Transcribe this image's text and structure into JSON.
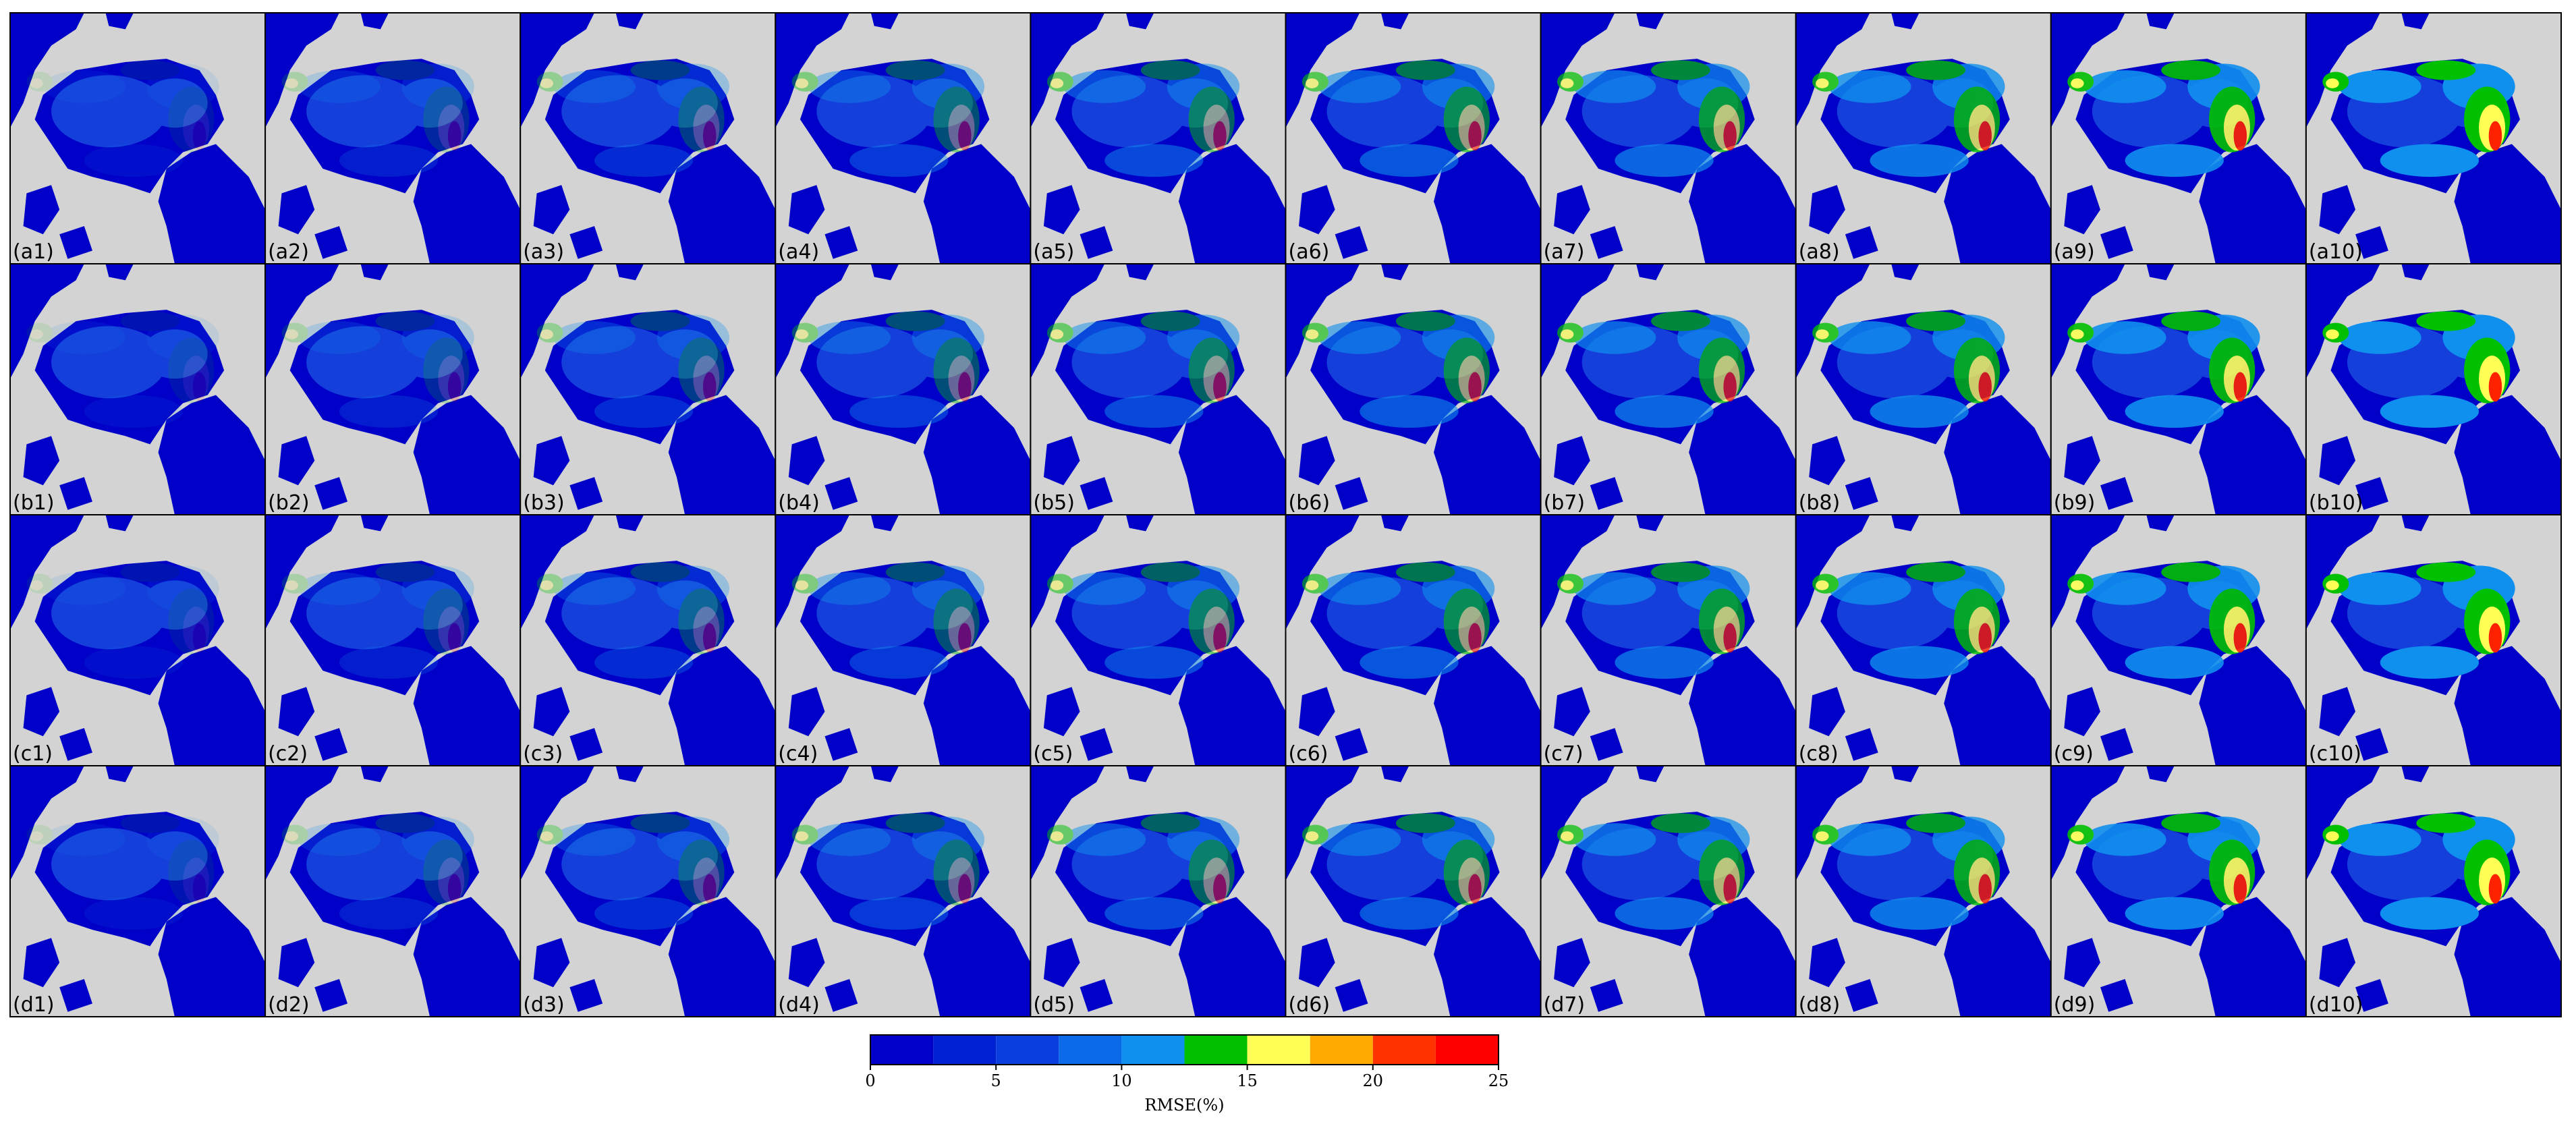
{
  "panels": [
    [
      "(a1)",
      "(a2)",
      "(a3)",
      "(a4)",
      "(a5)",
      "(a6)",
      "(a7)",
      "(a8)",
      "(a9)",
      "(a10)"
    ],
    [
      "(b1)",
      "(b2)",
      "(b3)",
      "(b4)",
      "(b5)",
      "(b6)",
      "(b7)",
      "(b8)",
      "(b9)",
      "(b10)"
    ],
    [
      "(c1)",
      "(c2)",
      "(c3)",
      "(c4)",
      "(c5)",
      "(c6)",
      "(c7)",
      "(c8)",
      "(c9)",
      "(c10)"
    ],
    [
      "(d1)",
      "(d2)",
      "(d3)",
      "(d4)",
      "(d5)",
      "(d6)",
      "(d7)",
      "(d8)",
      "(d9)",
      "(d10)"
    ]
  ],
  "chart_data": {
    "type": "colorbar",
    "bins": [
      0,
      2.5,
      5,
      7.5,
      10,
      12.5,
      15,
      17.5,
      20,
      22.5,
      25
    ],
    "colors": [
      "#0000c8",
      "#0022d2",
      "#0a3ede",
      "#0a6ae8",
      "#1090ee",
      "#00c000",
      "#ffff55",
      "#ffaa00",
      "#ff3300",
      "#ff0000"
    ],
    "xlim": [
      0,
      25
    ],
    "xticks": [
      0,
      5,
      10,
      15,
      20,
      25
    ],
    "xlabel": "RMSE(%)"
  }
}
